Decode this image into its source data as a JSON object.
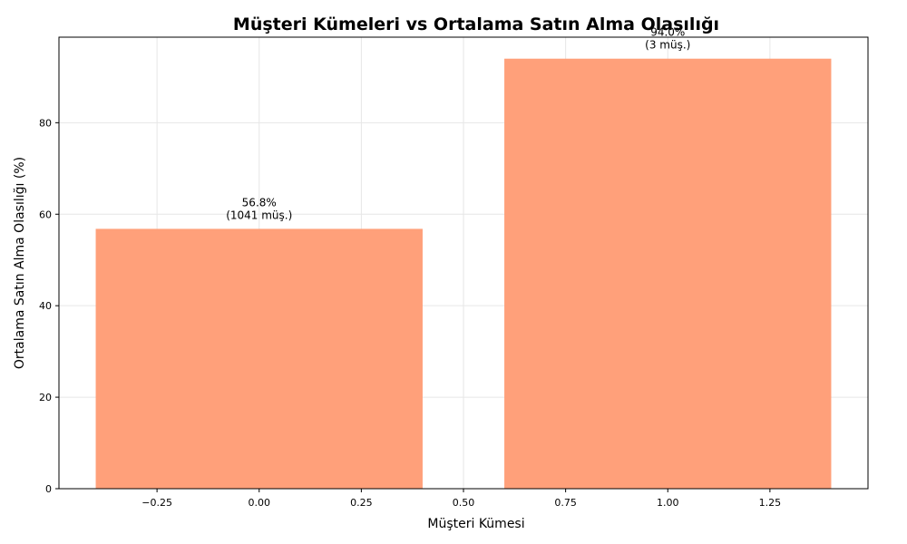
{
  "chart_data": {
    "type": "bar",
    "title": "Müşteri Kümeleri vs Ortalama Satın Alma Olasılığı",
    "xlabel": "Müşteri Kümesi",
    "ylabel": "Ortalama Satın Alma Olasılığı (%)",
    "x": [
      0,
      1
    ],
    "bar_width": 0.8,
    "values": [
      56.8,
      94.0
    ],
    "data_labels": [
      [
        "56.8%",
        "(1041 müş.)"
      ],
      [
        "94.0%",
        "(3 müş.)"
      ]
    ],
    "xlim": [
      -0.49,
      1.49
    ],
    "ylim": [
      0,
      98.7
    ],
    "x_ticks": [
      -0.25,
      0.0,
      0.25,
      0.5,
      0.75,
      1.0,
      1.25
    ],
    "x_tick_labels": [
      "−0.25",
      "0.00",
      "0.25",
      "0.50",
      "0.75",
      "1.00",
      "1.25"
    ],
    "y_ticks": [
      0,
      20,
      40,
      60,
      80
    ],
    "y_tick_labels": [
      "0",
      "20",
      "40",
      "60",
      "80"
    ],
    "grid": true,
    "colors": {
      "bar": "#ffa07a",
      "grid": "#e6e6e6",
      "axis": "#000000"
    }
  }
}
